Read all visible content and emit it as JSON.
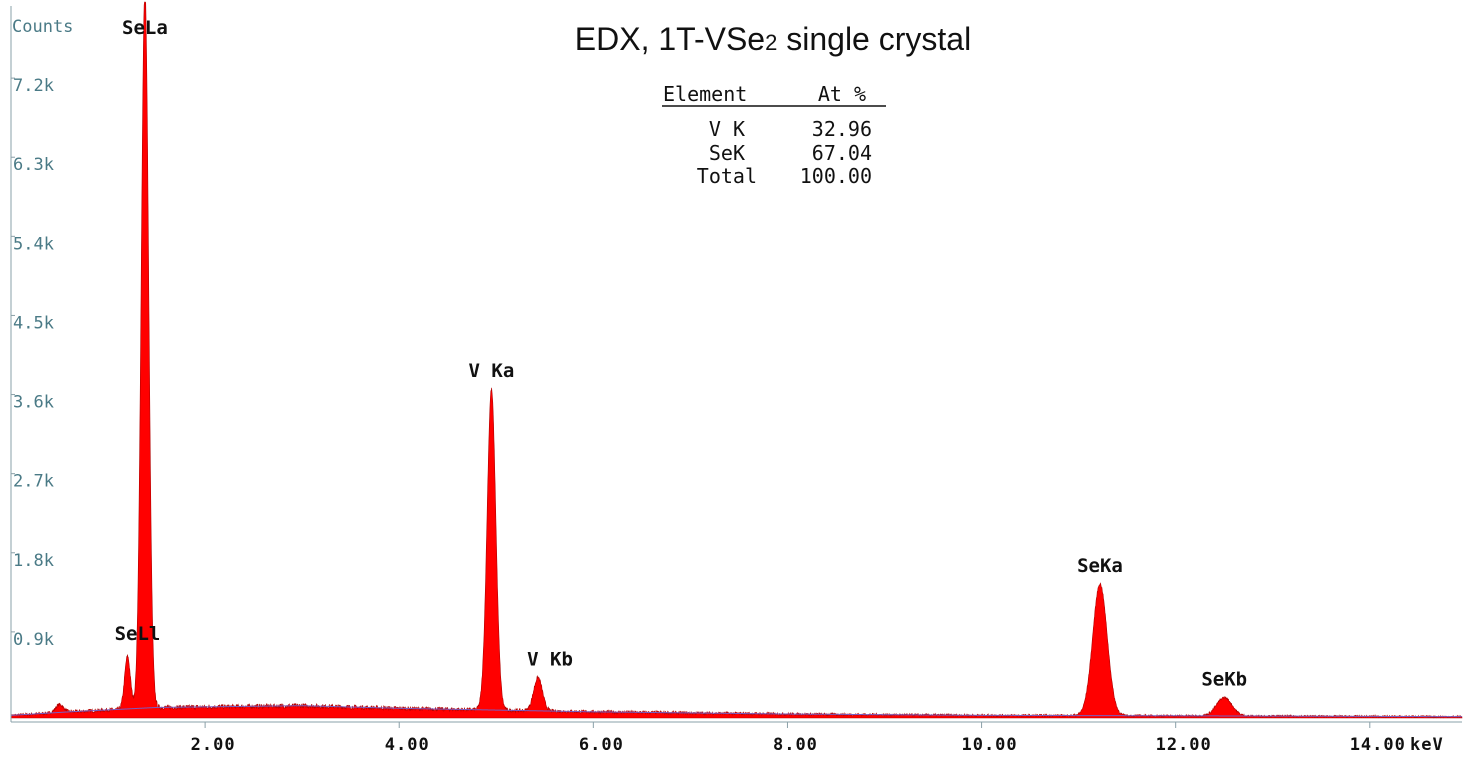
{
  "chart_data": {
    "type": "area",
    "title": "EDX, 1T-VSe",
    "title_subscript": "2",
    "title_suffix": " single crystal",
    "ylabel": "Counts",
    "xlabel": "keV",
    "xlim": [
      0.0,
      14.95
    ],
    "ylim": [
      0,
      8100
    ],
    "y_ticks": [
      {
        "value": 900,
        "label": "0.9k"
      },
      {
        "value": 1800,
        "label": "1.8k"
      },
      {
        "value": 2700,
        "label": "2.7k"
      },
      {
        "value": 3600,
        "label": "3.6k"
      },
      {
        "value": 4500,
        "label": "4.5k"
      },
      {
        "value": 5400,
        "label": "5.4k"
      },
      {
        "value": 6300,
        "label": "6.3k"
      },
      {
        "value": 7200,
        "label": "7.2k"
      }
    ],
    "x_ticks": [
      {
        "value": 2.0,
        "label": "2.00"
      },
      {
        "value": 4.0,
        "label": "4.00"
      },
      {
        "value": 6.0,
        "label": "6.00"
      },
      {
        "value": 8.0,
        "label": "8.00"
      },
      {
        "value": 10.0,
        "label": "10.00"
      },
      {
        "value": 12.0,
        "label": "12.00"
      },
      {
        "value": 14.0,
        "label": "14.00"
      }
    ],
    "series_color": "#ff0000",
    "background_color": "#7a5cc0",
    "background": [
      [
        0.0,
        30
      ],
      [
        0.6,
        70
      ],
      [
        1.5,
        120
      ],
      [
        3.0,
        140
      ],
      [
        4.0,
        110
      ],
      [
        6.0,
        70
      ],
      [
        8.0,
        45
      ],
      [
        10.0,
        30
      ],
      [
        12.0,
        25
      ],
      [
        14.95,
        15
      ]
    ],
    "noise_amplitude": 35,
    "peaks": [
      {
        "label": "SeLa",
        "energy": 1.38,
        "counts": 8200,
        "width": 0.038
      },
      {
        "label": "SeLl",
        "energy": 1.2,
        "counts": 600,
        "width": 0.03
      },
      {
        "label": "V Ka",
        "energy": 4.95,
        "counts": 3650,
        "width": 0.045
      },
      {
        "label": "V Kb",
        "energy": 5.43,
        "counts": 380,
        "width": 0.045
      },
      {
        "label": "SeKa",
        "energy": 11.22,
        "counts": 1500,
        "width": 0.075
      },
      {
        "label": "SeKb",
        "energy": 12.5,
        "counts": 210,
        "width": 0.08
      },
      {
        "label": "",
        "energy": 0.5,
        "counts": 90,
        "width": 0.04
      }
    ],
    "quant_table": {
      "headers": [
        "Element",
        "At %"
      ],
      "rows": [
        {
          "element": "V K",
          "value": "32.96"
        },
        {
          "element": "SeK",
          "value": "67.04"
        },
        {
          "element": "Total",
          "value": "100.00"
        }
      ]
    }
  }
}
